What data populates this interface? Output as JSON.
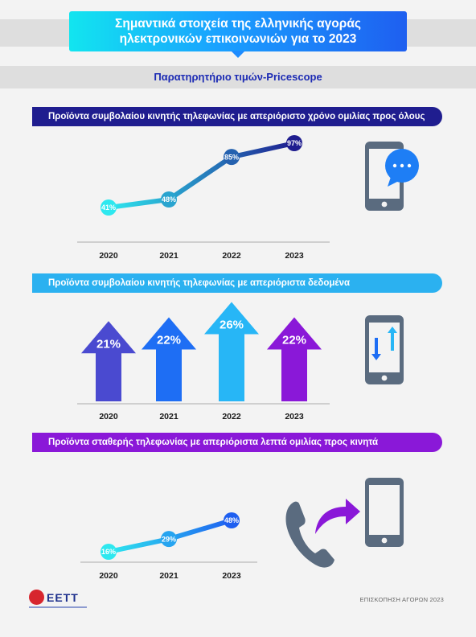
{
  "header": {
    "title_line1": "Σημαντικά στοιχεία της ελληνικής αγοράς",
    "title_line2": "ηλεκτρονικών επικοινωνιών για το 2023",
    "subtitle": "Παρατηρητήριο τιμών-Pricescope"
  },
  "sections": [
    {
      "banner": "Προϊόντα συμβολαίου κινητής τηλεφωνίας με απεριόριστο χρόνο ομιλίας προς όλους",
      "color": "#1f1d8f"
    },
    {
      "banner": "Προϊόντα συμβολαίου κινητής τηλεφωνίας με απεριόριστα δεδομένα",
      "color": "#2bb1f0"
    },
    {
      "banner": "Προϊόντα σταθερής τηλεφωνίας με απεριόριστα λεπτά ομιλίας προς κινητά",
      "color": "#8a18d8"
    }
  ],
  "chart_data": [
    {
      "type": "line",
      "categories": [
        "2020",
        "2021",
        "2022",
        "2023"
      ],
      "values": [
        41,
        48,
        85,
        97
      ],
      "labels": [
        "41%",
        "48%",
        "85%",
        "97%"
      ],
      "unit": "%",
      "colors": {
        "start": "#2ee8ef",
        "end": "#1f1d8f"
      }
    },
    {
      "type": "bar",
      "categories": [
        "2020",
        "2021",
        "2022",
        "2023"
      ],
      "values": [
        21,
        22,
        26,
        22
      ],
      "labels": [
        "21%",
        "22%",
        "26%",
        "22%"
      ],
      "unit": "%",
      "colors": [
        "#4a4ad0",
        "#1e6ef4",
        "#27b6f6",
        "#8a18d8"
      ]
    },
    {
      "type": "line",
      "categories": [
        "2020",
        "2021",
        "2023"
      ],
      "values": [
        16,
        29,
        48
      ],
      "labels": [
        "16%",
        "29%",
        "48%"
      ],
      "unit": "%",
      "colors": {
        "start": "#2ee8ef",
        "end": "#1e5ff0"
      }
    }
  ],
  "icons": [
    "smartphone-chat-icon",
    "smartphone-data-transfer-icon",
    "phone-handset-icon",
    "curved-arrow-icon",
    "smartphone-icon"
  ],
  "footer": {
    "logo_text": "ΕΕΤΤ",
    "note": "ΕΠΙΣΚΟΠΗΣΗ ΑΓΟΡΩΝ 2023"
  },
  "colors": {
    "icon_gray": "#5a6b7f",
    "bubble_blue": "#1e7ef5",
    "accent_purple": "#8a18d8"
  }
}
